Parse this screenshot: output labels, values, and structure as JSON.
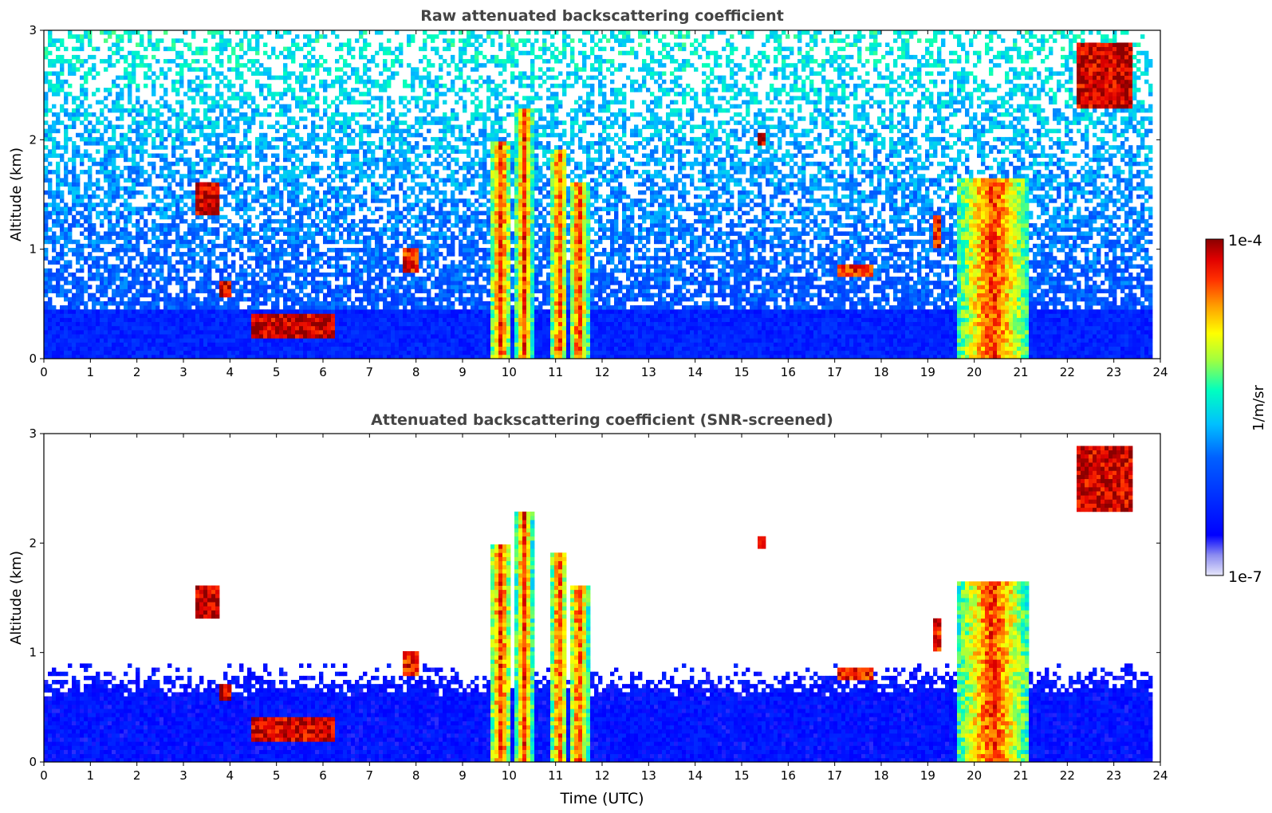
{
  "chart_data": [
    {
      "type": "heatmap",
      "title": "Raw attenuated backscattering coefficient",
      "xlabel": "",
      "ylabel": "Altitude (km)",
      "xlim": [
        0,
        24
      ],
      "ylim": [
        0,
        3
      ],
      "x_ticks": [
        "0",
        "1",
        "2",
        "3",
        "4",
        "5",
        "6",
        "7",
        "8",
        "9",
        "10",
        "11",
        "12",
        "13",
        "14",
        "15",
        "16",
        "17",
        "18",
        "19",
        "20",
        "21",
        "22",
        "23",
        "24"
      ],
      "y_ticks": [
        "0",
        "1",
        "2",
        "3"
      ],
      "grid": false,
      "features": [
        {
          "kind": "noise_top_km",
          "value": 3.0
        },
        {
          "kind": "dense_lower_layer_top_km",
          "value": 0.45
        },
        {
          "kind": "precip_column",
          "x": [
            9.6,
            10.05
          ],
          "y": [
            0,
            2.0
          ],
          "level": 0.85
        },
        {
          "kind": "precip_column",
          "x": [
            10.15,
            10.5
          ],
          "y": [
            0,
            2.3
          ],
          "level": 0.9
        },
        {
          "kind": "precip_column",
          "x": [
            10.9,
            11.25
          ],
          "y": [
            0,
            1.9
          ],
          "level": 0.85
        },
        {
          "kind": "precip_column",
          "x": [
            11.3,
            11.7
          ],
          "y": [
            0,
            1.6
          ],
          "level": 0.8
        },
        {
          "kind": "precip_column",
          "x": [
            19.65,
            21.15
          ],
          "y": [
            0,
            1.65
          ],
          "level": 0.8
        },
        {
          "kind": "cloud",
          "x": [
            4.5,
            6.3
          ],
          "y": [
            0.2,
            0.4
          ],
          "level": 0.95
        },
        {
          "kind": "cloud",
          "x": [
            3.25,
            3.8
          ],
          "y": [
            1.3,
            1.6
          ],
          "level": 0.95
        },
        {
          "kind": "cloud",
          "x": [
            3.8,
            4.0
          ],
          "y": [
            0.55,
            0.7
          ],
          "level": 0.95
        },
        {
          "kind": "cloud",
          "x": [
            7.7,
            8.1
          ],
          "y": [
            0.8,
            1.0
          ],
          "level": 0.9
        },
        {
          "kind": "cloud",
          "x": [
            15.3,
            15.55
          ],
          "y": [
            1.95,
            2.05
          ],
          "level": 0.95
        },
        {
          "kind": "cloud",
          "x": [
            17.1,
            17.8
          ],
          "y": [
            0.75,
            0.85
          ],
          "level": 0.9
        },
        {
          "kind": "cloud",
          "x": [
            19.1,
            19.3
          ],
          "y": [
            1.0,
            1.3
          ],
          "level": 0.9
        },
        {
          "kind": "cloud",
          "x": [
            22.2,
            23.4
          ],
          "y": [
            2.3,
            2.9
          ],
          "level": 0.95
        }
      ]
    },
    {
      "type": "heatmap",
      "title": "Attenuated backscattering coefficient (SNR-screened)",
      "xlabel": "Time (UTC)",
      "ylabel": "Altitude (km)",
      "xlim": [
        0,
        24
      ],
      "ylim": [
        0,
        3
      ],
      "x_ticks": [
        "0",
        "1",
        "2",
        "3",
        "4",
        "5",
        "6",
        "7",
        "8",
        "9",
        "10",
        "11",
        "12",
        "13",
        "14",
        "15",
        "16",
        "17",
        "18",
        "19",
        "20",
        "21",
        "22",
        "23",
        "24"
      ],
      "y_ticks": [
        "0",
        "1",
        "2",
        "3"
      ],
      "grid": false,
      "features": [
        {
          "kind": "boundary_layer_top_km",
          "value": 0.75
        },
        {
          "kind": "precip_column",
          "x": [
            9.6,
            10.05
          ],
          "y": [
            0,
            2.0
          ],
          "level": 0.85
        },
        {
          "kind": "precip_column",
          "x": [
            10.15,
            10.5
          ],
          "y": [
            0,
            2.3
          ],
          "level": 0.9
        },
        {
          "kind": "precip_column",
          "x": [
            10.9,
            11.25
          ],
          "y": [
            0,
            1.9
          ],
          "level": 0.85
        },
        {
          "kind": "precip_column",
          "x": [
            11.3,
            11.7
          ],
          "y": [
            0,
            1.6
          ],
          "level": 0.8
        },
        {
          "kind": "precip_column",
          "x": [
            19.65,
            21.15
          ],
          "y": [
            0,
            1.65
          ],
          "level": 0.8
        },
        {
          "kind": "cloud",
          "x": [
            4.5,
            6.3
          ],
          "y": [
            0.2,
            0.4
          ],
          "level": 0.95
        },
        {
          "kind": "cloud",
          "x": [
            3.25,
            3.8
          ],
          "y": [
            1.3,
            1.6
          ],
          "level": 0.95
        },
        {
          "kind": "cloud",
          "x": [
            3.8,
            4.0
          ],
          "y": [
            0.55,
            0.7
          ],
          "level": 0.95
        },
        {
          "kind": "cloud",
          "x": [
            7.7,
            8.1
          ],
          "y": [
            0.8,
            1.0
          ],
          "level": 0.9
        },
        {
          "kind": "cloud",
          "x": [
            15.3,
            15.55
          ],
          "y": [
            1.95,
            2.05
          ],
          "level": 0.95
        },
        {
          "kind": "cloud",
          "x": [
            17.1,
            17.8
          ],
          "y": [
            0.75,
            0.85
          ],
          "level": 0.9
        },
        {
          "kind": "cloud",
          "x": [
            19.1,
            19.3
          ],
          "y": [
            1.0,
            1.3
          ],
          "level": 0.9
        },
        {
          "kind": "cloud",
          "x": [
            22.2,
            23.4
          ],
          "y": [
            2.3,
            2.9
          ],
          "level": 0.95
        }
      ]
    }
  ],
  "colorbar": {
    "label": "1/m/sr",
    "max_label": "1e-4",
    "min_label": "1e-7",
    "colormap": "jet",
    "colors": [
      "#e6e6fa",
      "#0000ff",
      "#00bfff",
      "#00ffc0",
      "#ffff00",
      "#ff8000",
      "#ff0000",
      "#8b0000"
    ]
  }
}
